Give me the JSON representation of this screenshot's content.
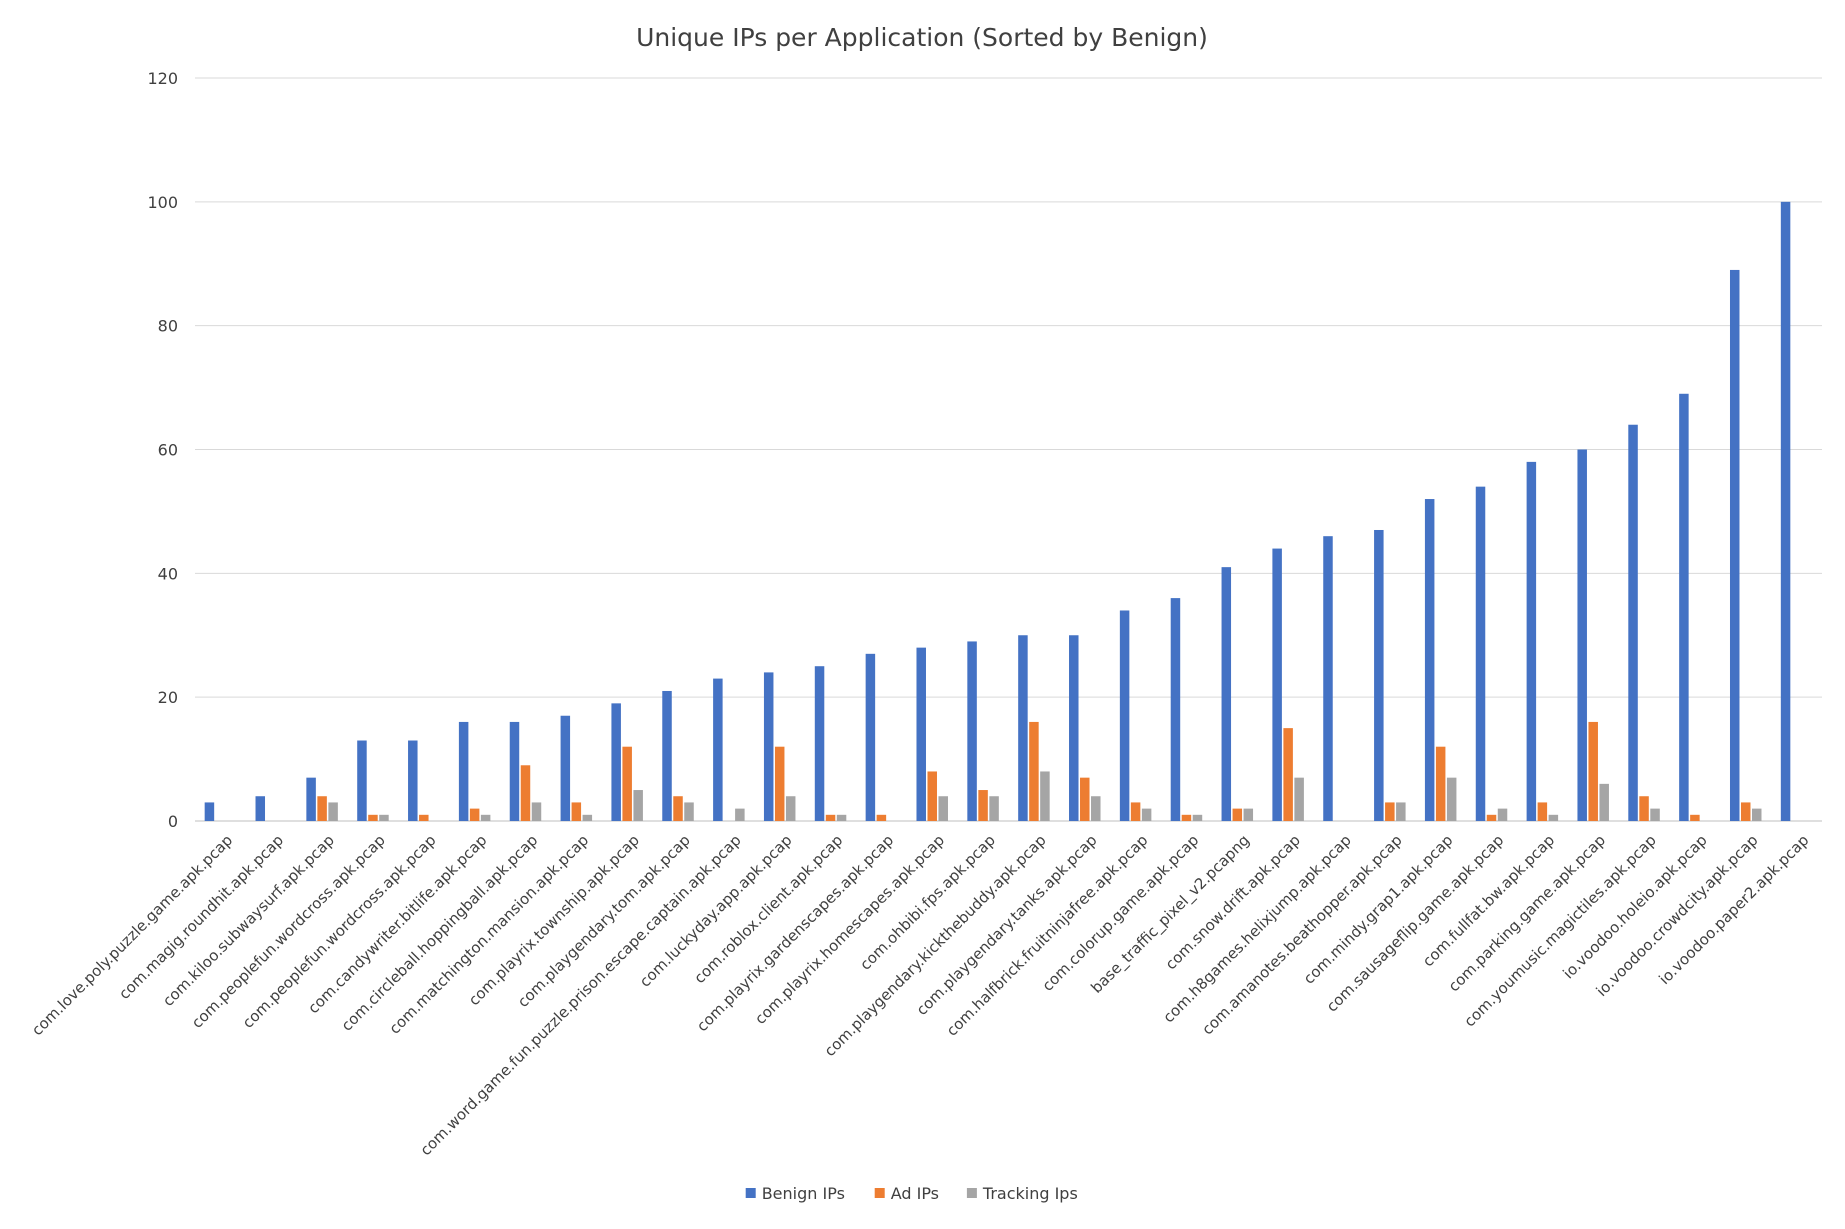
{
  "chart_data": {
    "type": "bar",
    "title": "Unique IPs per Application (Sorted by Benign)",
    "xlabel": "",
    "ylabel": "",
    "ylim": [
      0,
      120
    ],
    "yticks": [
      0,
      20,
      40,
      60,
      80,
      100,
      120
    ],
    "grid": true,
    "legend_position": "bottom",
    "categories": [
      "com.love.poly.puzzle.game.apk.pcap",
      "com.magig.roundhit.apk.pcap",
      "com.kiloo.subwaysurf.apk.pcap",
      "com.peoplefun.wordcross.apk.pcap",
      "com.peoplefun.wordcross.apk.pcap",
      "com.candywriter.bitlife.apk.pcap",
      "com.circleball.hoppingball.apk.pcap",
      "com.matchington.mansion.apk.pcap",
      "com.playrix.township.apk.pcap",
      "com.playgendary.tom.apk.pcap",
      "com.word.game.fun.puzzle.prison.escape.captain.apk.pcap",
      "com.luckyday.app.apk.pcap",
      "com.roblox.client.apk.pcap",
      "com.playrix.gardenscapes.apk.pcap",
      "com.playrix.homescapes.apk.pcap",
      "com.ohbibi.fps.apk.pcap",
      "com.playgendary.kickthebuddy.apk.pcap",
      "com.playgendary.tanks.apk.pcap",
      "com.halfbrick.fruitninjafree.apk.pcap",
      "com.colorup.game.apk.pcap",
      "base_traffic_pixel_v2.pcapng",
      "com.snow.drift.apk.pcap",
      "com.h8games.helixjump.apk.pcap",
      "com.amanotes.beathopper.apk.pcap",
      "com.mindy.grap1.apk.pcap",
      "com.sausageflip.game.apk.pcap",
      "com.fullfat.bw.apk.pcap",
      "com.parking.game.apk.pcap",
      "com.youmusic.magictiles.apk.pcap",
      "io.voodoo.holeio.apk.pcap",
      "io.voodoo.crowdcity.apk.pcap",
      "io.voodoo.paper2.apk.pcap"
    ],
    "series": [
      {
        "name": "Benign IPs",
        "color": "#4472c4",
        "values": [
          3,
          4,
          7,
          13,
          13,
          16,
          16,
          17,
          19,
          21,
          23,
          24,
          25,
          27,
          28,
          29,
          30,
          30,
          34,
          36,
          41,
          44,
          46,
          47,
          52,
          54,
          58,
          60,
          64,
          69,
          89,
          100
        ]
      },
      {
        "name": "Ad IPs",
        "color": "#ed7d31",
        "values": [
          0,
          0,
          4,
          1,
          1,
          2,
          9,
          3,
          12,
          4,
          0,
          12,
          1,
          1,
          8,
          5,
          16,
          7,
          3,
          1,
          2,
          15,
          0,
          3,
          12,
          1,
          3,
          16,
          4,
          1,
          3,
          0
        ]
      },
      {
        "name": "Tracking Ips",
        "color": "#a5a5a5",
        "values": [
          0,
          0,
          3,
          1,
          0,
          1,
          3,
          1,
          5,
          3,
          2,
          4,
          1,
          0,
          4,
          4,
          8,
          4,
          2,
          1,
          2,
          7,
          0,
          3,
          7,
          2,
          1,
          6,
          2,
          0,
          2,
          0
        ]
      }
    ]
  }
}
